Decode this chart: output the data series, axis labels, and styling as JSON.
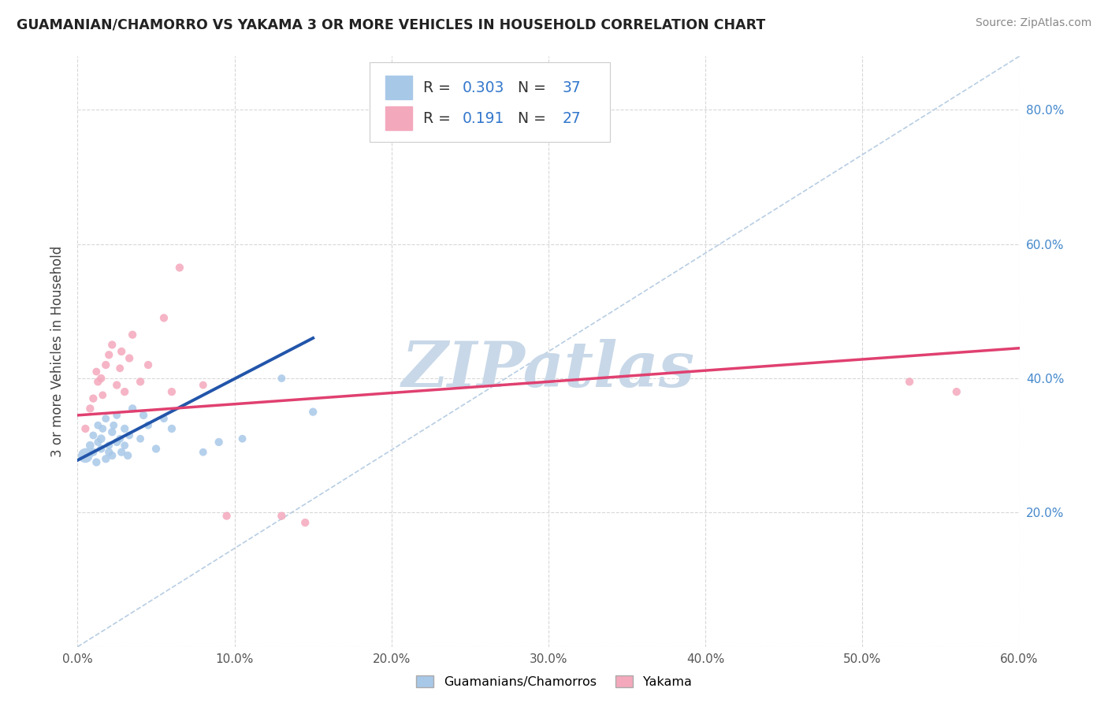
{
  "title": "GUAMANIAN/CHAMORRO VS YAKAMA 3 OR MORE VEHICLES IN HOUSEHOLD CORRELATION CHART",
  "source": "Source: ZipAtlas.com",
  "ylabel": "3 or more Vehicles in Household",
  "blue_R": 0.303,
  "blue_N": 37,
  "pink_R": 0.191,
  "pink_N": 27,
  "blue_color": "#a8c8e8",
  "pink_color": "#f4a8bc",
  "blue_line_color": "#2255aa",
  "pink_line_color": "#e04070",
  "watermark": "ZIPatlas",
  "watermark_color": "#c8d8e8",
  "xlim": [
    0.0,
    0.6
  ],
  "ylim": [
    0.0,
    0.88
  ],
  "blue_scatter_x": [
    0.005,
    0.008,
    0.01,
    0.01,
    0.012,
    0.013,
    0.013,
    0.015,
    0.015,
    0.016,
    0.018,
    0.018,
    0.02,
    0.02,
    0.022,
    0.022,
    0.023,
    0.025,
    0.025,
    0.027,
    0.028,
    0.03,
    0.03,
    0.032,
    0.033,
    0.035,
    0.04,
    0.042,
    0.045,
    0.05,
    0.055,
    0.06,
    0.08,
    0.09,
    0.105,
    0.13,
    0.15
  ],
  "blue_scatter_y": [
    0.285,
    0.3,
    0.29,
    0.315,
    0.275,
    0.305,
    0.33,
    0.295,
    0.31,
    0.325,
    0.28,
    0.34,
    0.29,
    0.3,
    0.285,
    0.32,
    0.33,
    0.305,
    0.345,
    0.31,
    0.29,
    0.325,
    0.3,
    0.285,
    0.315,
    0.355,
    0.31,
    0.345,
    0.33,
    0.295,
    0.34,
    0.325,
    0.29,
    0.305,
    0.31,
    0.4,
    0.35
  ],
  "blue_scatter_sizes": [
    180,
    60,
    55,
    50,
    55,
    50,
    50,
    55,
    60,
    50,
    55,
    50,
    55,
    50,
    55,
    55,
    50,
    55,
    50,
    50,
    55,
    55,
    50,
    55,
    50,
    55,
    50,
    55,
    50,
    55,
    50,
    55,
    50,
    55,
    50,
    50,
    55
  ],
  "pink_scatter_x": [
    0.005,
    0.008,
    0.01,
    0.012,
    0.013,
    0.015,
    0.016,
    0.018,
    0.02,
    0.022,
    0.025,
    0.027,
    0.028,
    0.03,
    0.033,
    0.035,
    0.04,
    0.045,
    0.055,
    0.06,
    0.065,
    0.08,
    0.095,
    0.13,
    0.145,
    0.53,
    0.56
  ],
  "pink_scatter_y": [
    0.325,
    0.355,
    0.37,
    0.41,
    0.395,
    0.4,
    0.375,
    0.42,
    0.435,
    0.45,
    0.39,
    0.415,
    0.44,
    0.38,
    0.43,
    0.465,
    0.395,
    0.42,
    0.49,
    0.38,
    0.565,
    0.39,
    0.195,
    0.195,
    0.185,
    0.395,
    0.38
  ],
  "pink_scatter_sizes": [
    55,
    55,
    55,
    50,
    55,
    55,
    50,
    55,
    55,
    55,
    55,
    50,
    55,
    55,
    55,
    55,
    55,
    55,
    55,
    55,
    55,
    50,
    55,
    55,
    55,
    55,
    55
  ],
  "background_color": "#ffffff",
  "grid_color": "#d8d8d8",
  "blue_line_x": [
    0.0,
    0.15
  ],
  "blue_line_y": [
    0.278,
    0.46
  ],
  "pink_line_x": [
    0.0,
    0.6
  ],
  "pink_line_y": [
    0.345,
    0.445
  ]
}
